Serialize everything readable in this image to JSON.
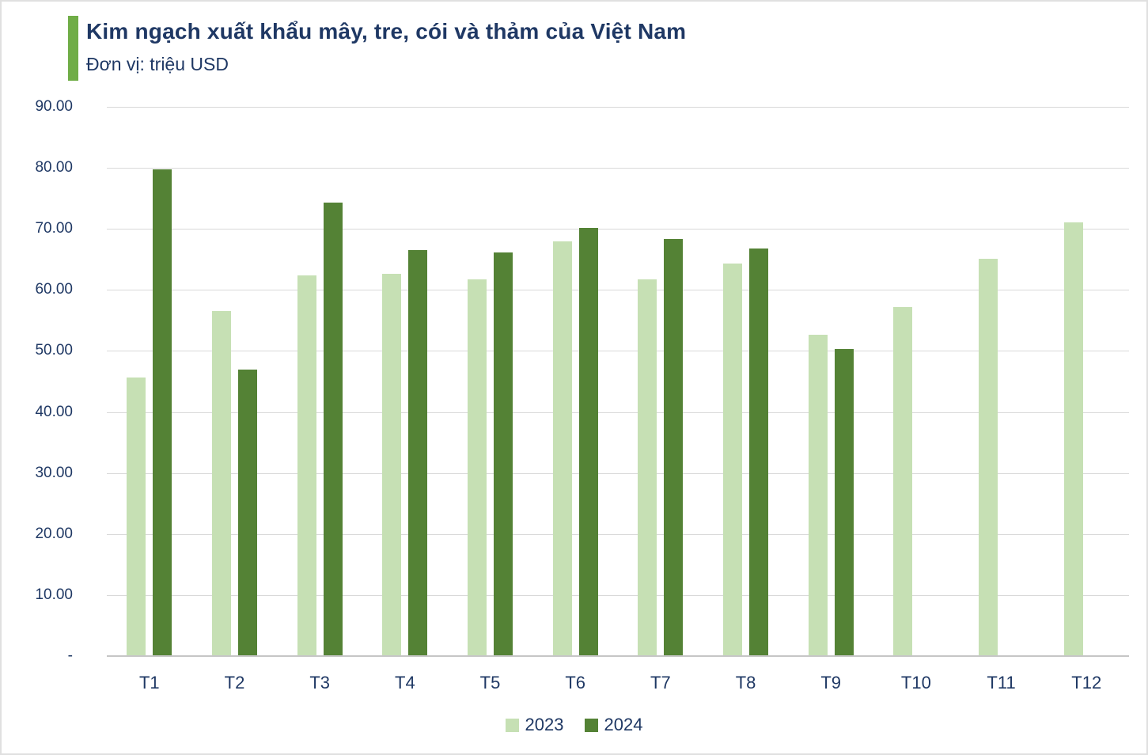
{
  "header": {
    "title": "Kim ngạch xuất khẩu mây, tre, cói và thảm của Việt Nam",
    "subtitle": "Đơn vị: triệu USD"
  },
  "chart_data": {
    "type": "bar",
    "title": "Kim ngạch xuất khẩu mây, tre, cói và thảm của Việt Nam",
    "unit_label": "Đơn vị: triệu USD",
    "categories": [
      "T1",
      "T2",
      "T3",
      "T4",
      "T5",
      "T6",
      "T7",
      "T8",
      "T9",
      "T10",
      "T11",
      "T12"
    ],
    "series": [
      {
        "name": "2023",
        "color": "#C6E0B4",
        "values": [
          45.7,
          56.5,
          62.4,
          62.7,
          61.7,
          68.0,
          61.7,
          64.3,
          52.6,
          57.2,
          65.1,
          71.1
        ]
      },
      {
        "name": "2024",
        "color": "#548235",
        "values": [
          79.7,
          47.0,
          74.3,
          66.5,
          66.2,
          70.2,
          68.3,
          66.8,
          50.3,
          null,
          null,
          null
        ]
      }
    ],
    "ylim": [
      0,
      90
    ],
    "y_tick_step": 10,
    "y_tick_labels": [
      "90.00",
      "80.00",
      "70.00",
      "60.00",
      "50.00",
      "40.00",
      "30.00",
      "20.00",
      "10.00",
      "-"
    ],
    "grid": true,
    "legend_position": "bottom",
    "legend": [
      "2023",
      "2024"
    ]
  },
  "colors": {
    "background": "#FFFFFF",
    "accent_bar": "#70AD47",
    "title_text": "#1F3864",
    "axis_text": "#1F3864",
    "gridline": "#D9D9D9",
    "axis_line": "#C6C6C6",
    "series_2023": "#C6E0B4",
    "series_2024": "#548235"
  }
}
